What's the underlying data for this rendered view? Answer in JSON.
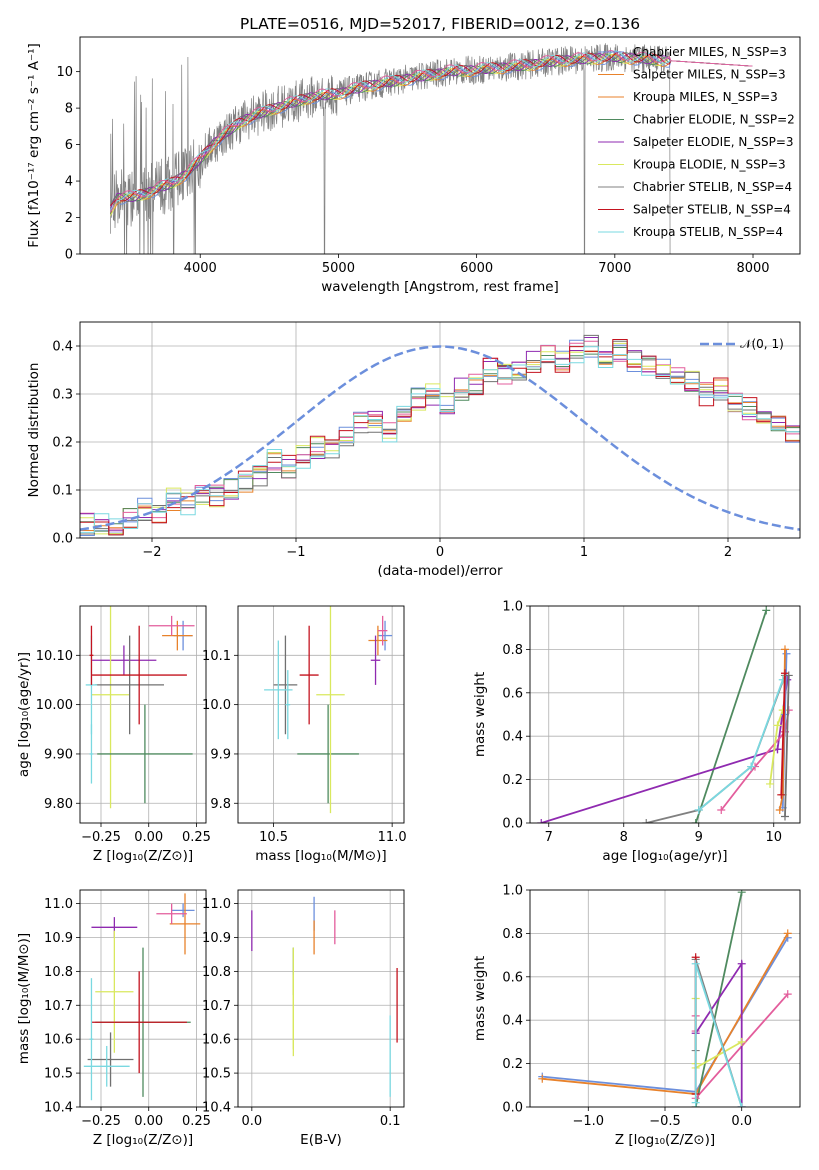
{
  "colors": [
    "#6c8fdc",
    "#e8822b",
    "#4f8a5f",
    "#e35d9c",
    "#8f2ab0",
    "#d9e85e",
    "#707070",
    "#c4131f",
    "#7ad8e0",
    "#808080"
  ],
  "chart_data": [
    {
      "type": "line",
      "title": "PLATE=0516, MJD=52017, FIBERID=0012, z=0.136",
      "xlabel": "wavelength [Angstrom, rest frame]",
      "ylabel": "Flux [fλ10⁻¹⁷ erg cm⁻² s⁻¹ A⁻¹]",
      "xlim": [
        3130,
        8340
      ],
      "ylim": [
        0,
        11.9
      ],
      "xticks": [
        4000,
        5000,
        6000,
        7000,
        8000
      ],
      "yticks": [
        0,
        2,
        4,
        6,
        8,
        10
      ],
      "grid": false,
      "legend_position": "top-right",
      "legend": [
        "Chabrier MILES, N_SSP=3",
        "Salpeter MILES, N_SSP=3",
        "Kroupa MILES, N_SSP=3",
        "Chabrier ELODIE, N_SSP=2",
        "Salpeter ELODIE, N_SSP=3",
        "Kroupa ELODIE, N_SSP=3",
        "Chabrier STELIB, N_SSP=4",
        "Salpeter STELIB, N_SSP=4",
        "Kroupa STELIB, N_SSP=4"
      ],
      "continuum": {
        "x": [
          3350,
          3400,
          3500,
          3600,
          3700,
          3800,
          3900,
          4000,
          4100,
          4300,
          4500,
          4800,
          5000,
          5200,
          5500,
          5800,
          6000,
          6300,
          6600,
          6800,
          7000,
          7200,
          7400
        ],
        "y": [
          2.4,
          3.1,
          3.1,
          3.3,
          3.6,
          3.9,
          4.4,
          5.2,
          6.1,
          7.3,
          7.9,
          8.6,
          8.8,
          9.2,
          9.6,
          10.0,
          10.1,
          10.3,
          10.6,
          10.7,
          10.8,
          10.7,
          10.6
        ]
      }
    },
    {
      "type": "bar",
      "xlabel": "(data-model)/error",
      "ylabel": "Normed distribution",
      "xlim": [
        -2.5,
        2.5
      ],
      "ylim": [
        0,
        0.45
      ],
      "xticks": [
        -2,
        -1,
        0,
        1,
        2
      ],
      "yticks": [
        0.0,
        0.1,
        0.2,
        0.3,
        0.4
      ],
      "grid": true,
      "legend_position": "top-right",
      "legend": [
        "𝒩(0, 1)"
      ],
      "bin_width": 0.1,
      "bin_start": -2.5,
      "base": [
        0.03,
        0.03,
        0.03,
        0.04,
        0.06,
        0.05,
        0.08,
        0.07,
        0.09,
        0.09,
        0.1,
        0.12,
        0.13,
        0.16,
        0.15,
        0.17,
        0.19,
        0.18,
        0.21,
        0.24,
        0.24,
        0.22,
        0.26,
        0.29,
        0.3,
        0.28,
        0.31,
        0.32,
        0.35,
        0.34,
        0.35,
        0.37,
        0.38,
        0.37,
        0.39,
        0.4,
        0.38,
        0.39,
        0.37,
        0.36,
        0.35,
        0.34,
        0.33,
        0.3,
        0.31,
        0.28,
        0.27,
        0.25,
        0.23,
        0.22,
        0.21,
        0.2,
        0.19,
        0.16,
        0.15,
        0.14,
        0.12,
        0.11,
        0.1,
        0.09,
        0.08,
        0.08,
        0.07,
        0.06,
        0.05,
        0.05,
        0.05,
        0.04,
        0.04,
        0.04,
        0.04,
        0.04,
        0.04,
        0.03,
        0.03,
        0.03,
        0.03,
        0.03,
        0.03,
        0.03
      ],
      "normal_curve": {
        "mean": 0,
        "sigma": 1
      }
    },
    {
      "type": "scatter",
      "xlabel": "Z [log₁₀(Z/Z⊙)]",
      "ylabel": "age  [log₁₀(age/yr)]",
      "xlim": [
        -0.36,
        0.3
      ],
      "ylim": [
        9.76,
        10.2
      ],
      "xticks": [
        -0.25,
        0.0,
        0.25
      ],
      "yticks": [
        9.8,
        9.9,
        10.0,
        10.1
      ],
      "grid": true,
      "points": [
        {
          "x": -0.13,
          "y": 10.09,
          "xerr": 0.17,
          "yerr": 0.03,
          "c": 4
        },
        {
          "x": -0.2,
          "y": 10.02,
          "xerr": 0.1,
          "yerr": 0.23,
          "c": 5
        },
        {
          "x": -0.1,
          "y": 10.04,
          "xerr": 0.18,
          "yerr": 0.1,
          "c": 6
        },
        {
          "x": -0.05,
          "y": 10.06,
          "xerr": 0.25,
          "yerr": 0.1,
          "c": 7
        },
        {
          "x": -0.3,
          "y": 10.04,
          "xerr": 0.03,
          "yerr": 0.1,
          "c": 8
        },
        {
          "x": -0.3,
          "y": 9.9,
          "xerr": 0.01,
          "yerr": 0.06,
          "c": 8
        },
        {
          "x": -0.02,
          "y": 9.9,
          "xerr": 0.25,
          "yerr": 0.1,
          "c": 2
        },
        {
          "x": 0.18,
          "y": 10.14,
          "xerr": 0.05,
          "yerr": 0.03,
          "c": 0
        },
        {
          "x": 0.15,
          "y": 10.14,
          "xerr": 0.08,
          "yerr": 0.03,
          "c": 1
        },
        {
          "x": 0.12,
          "y": 10.16,
          "xerr": 0.12,
          "yerr": 0.02,
          "c": 3
        },
        {
          "x": -0.3,
          "y": 10.1,
          "xerr": 0.01,
          "yerr": 0.06,
          "c": 7
        }
      ]
    },
    {
      "type": "scatter",
      "xlabel": "mass [log₁₀(M/M⊙)]",
      "ylabel": "",
      "xlim": [
        10.35,
        11.05
      ],
      "ylim": [
        9.76,
        10.2
      ],
      "xticks": [
        10.5,
        11.0
      ],
      "yticks": [
        9.8,
        9.9,
        10.0,
        10.1
      ],
      "grid": true,
      "points": [
        {
          "x": 10.97,
          "y": 10.14,
          "xerr": 0.03,
          "yerr": 0.03,
          "c": 0
        },
        {
          "x": 10.94,
          "y": 10.13,
          "xerr": 0.04,
          "yerr": 0.03,
          "c": 1
        },
        {
          "x": 10.73,
          "y": 9.9,
          "xerr": 0.13,
          "yerr": 0.1,
          "c": 2
        },
        {
          "x": 10.96,
          "y": 10.15,
          "xerr": 0.02,
          "yerr": 0.03,
          "c": 3
        },
        {
          "x": 10.93,
          "y": 10.09,
          "xerr": 0.02,
          "yerr": 0.05,
          "c": 4
        },
        {
          "x": 10.74,
          "y": 10.02,
          "xerr": 0.06,
          "yerr": 0.24,
          "c": 5
        },
        {
          "x": 10.55,
          "y": 10.04,
          "xerr": 0.05,
          "yerr": 0.1,
          "c": 6
        },
        {
          "x": 10.65,
          "y": 10.06,
          "xerr": 0.04,
          "yerr": 0.1,
          "c": 7
        },
        {
          "x": 10.52,
          "y": 10.03,
          "xerr": 0.06,
          "yerr": 0.1,
          "c": 8
        },
        {
          "x": 10.56,
          "y": 10.0,
          "xerr": 0.01,
          "yerr": 0.07,
          "c": 8
        }
      ]
    },
    {
      "type": "line",
      "xlabel": "age  [log₁₀(age/yr)]",
      "ylabel": "mass weight",
      "xlim": [
        6.75,
        10.35
      ],
      "ylim": [
        0,
        1.0
      ],
      "xticks": [
        7,
        8,
        9,
        10
      ],
      "yticks": [
        0.0,
        0.2,
        0.4,
        0.6,
        0.8,
        1.0
      ],
      "grid": true,
      "series": [
        {
          "c": 2,
          "x": [
            8.96,
            9.9
          ],
          "y": [
            0.0,
            0.98
          ]
        },
        {
          "c": 4,
          "x": [
            6.9,
            10.05
          ],
          "y": [
            0.0,
            0.34
          ]
        },
        {
          "c": 4,
          "x": [
            10.05,
            10.18
          ],
          "y": [
            0.34,
            0.66
          ]
        },
        {
          "c": 3,
          "x": [
            9.3,
            9.75,
            10.15
          ],
          "y": [
            0.06,
            0.26,
            0.42
          ]
        },
        {
          "c": 3,
          "x": [
            10.15,
            10.2
          ],
          "y": [
            0.42,
            0.52
          ]
        },
        {
          "c": 5,
          "x": [
            9.95,
            10.05,
            10.12
          ],
          "y": [
            0.18,
            0.45,
            0.52
          ]
        },
        {
          "c": 9,
          "x": [
            8.3,
            9.0,
            9.7,
            10.15
          ],
          "y": [
            0.0,
            0.06,
            0.26,
            0.68
          ]
        },
        {
          "c": 8,
          "x": [
            9.0,
            9.7,
            10.12
          ],
          "y": [
            0.06,
            0.26,
            0.66
          ]
        },
        {
          "c": 0,
          "x": [
            10.12,
            10.15,
            10.17
          ],
          "y": [
            0.07,
            0.5,
            0.78
          ]
        },
        {
          "c": 1,
          "x": [
            10.08,
            10.12,
            10.15
          ],
          "y": [
            0.06,
            0.13,
            0.8
          ]
        },
        {
          "c": 7,
          "x": [
            10.1,
            10.15
          ],
          "y": [
            0.13,
            0.69
          ]
        },
        {
          "c": 6,
          "x": [
            10.15,
            10.2
          ],
          "y": [
            0.03,
            0.68
          ]
        }
      ]
    },
    {
      "type": "scatter",
      "xlabel": "Z [log₁₀(Z/Z⊙)]",
      "ylabel": "mass [log₁₀(M/M⊙)]",
      "xlim": [
        -0.36,
        0.3
      ],
      "ylim": [
        10.4,
        11.04
      ],
      "xticks": [
        -0.25,
        0.0,
        0.25
      ],
      "yticks": [
        10.4,
        10.5,
        10.6,
        10.7,
        10.8,
        10.9,
        11.0
      ],
      "grid": true,
      "points": [
        {
          "x": 0.18,
          "y": 10.98,
          "xerr": 0.06,
          "yerr": 0.02,
          "c": 0
        },
        {
          "x": 0.19,
          "y": 10.94,
          "xerr": 0.08,
          "yerr": 0.09,
          "c": 1
        },
        {
          "x": -0.03,
          "y": 10.65,
          "xerr": 0.25,
          "yerr": 0.22,
          "c": 2
        },
        {
          "x": 0.12,
          "y": 10.97,
          "xerr": 0.08,
          "yerr": 0.03,
          "c": 3
        },
        {
          "x": -0.18,
          "y": 10.93,
          "xerr": 0.12,
          "yerr": 0.03,
          "c": 4
        },
        {
          "x": -0.18,
          "y": 10.74,
          "xerr": 0.1,
          "yerr": 0.18,
          "c": 5
        },
        {
          "x": -0.2,
          "y": 10.54,
          "xerr": 0.12,
          "yerr": 0.08,
          "c": 6
        },
        {
          "x": -0.05,
          "y": 10.65,
          "xerr": 0.25,
          "yerr": 0.15,
          "c": 7
        },
        {
          "x": -0.22,
          "y": 10.52,
          "xerr": 0.12,
          "yerr": 0.06,
          "c": 8
        },
        {
          "x": -0.3,
          "y": 10.6,
          "xerr": 0.01,
          "yerr": 0.18,
          "c": 8
        }
      ]
    },
    {
      "type": "scatter",
      "xlabel": "E(B-V)",
      "ylabel": "",
      "xlim": [
        -0.01,
        0.11
      ],
      "ylim": [
        10.4,
        11.04
      ],
      "xticks": [
        0.0,
        0.1
      ],
      "yticks": [
        10.4,
        10.5,
        10.6,
        10.7,
        10.8,
        10.9,
        11.0
      ],
      "grid": true,
      "points": [
        {
          "x": 0.045,
          "y": 10.97,
          "xerr": 0.0,
          "yerr": 0.05,
          "c": 0
        },
        {
          "x": 0.045,
          "y": 10.9,
          "xerr": 0.0,
          "yerr": 0.05,
          "c": 1
        },
        {
          "x": 0.03,
          "y": 10.8,
          "xerr": 0.0,
          "yerr": 0.07,
          "c": 2
        },
        {
          "x": 0.06,
          "y": 10.93,
          "xerr": 0.0,
          "yerr": 0.05,
          "c": 3
        },
        {
          "x": 0.0,
          "y": 10.92,
          "xerr": 0.0,
          "yerr": 0.06,
          "c": 4
        },
        {
          "x": 0.03,
          "y": 10.67,
          "xerr": 0.0,
          "yerr": 0.12,
          "c": 5
        },
        {
          "x": 0.03,
          "y": 10.72,
          "xerr": 0.0,
          "yerr": 0.15,
          "c": 5
        },
        {
          "x": 0.1,
          "y": 10.55,
          "xerr": 0.0,
          "yerr": 0.12,
          "c": 8
        },
        {
          "x": 0.105,
          "y": 10.7,
          "xerr": 0.0,
          "yerr": 0.11,
          "c": 7
        }
      ]
    },
    {
      "type": "line",
      "xlabel": "Z [log₁₀(Z/Z⊙)]",
      "ylabel": "mass weight",
      "xlim": [
        -1.38,
        0.38
      ],
      "ylim": [
        0,
        1.0
      ],
      "xticks": [
        -1.0,
        -0.5,
        0.0
      ],
      "yticks": [
        0.0,
        0.2,
        0.4,
        0.6,
        0.8,
        1.0
      ],
      "grid": true,
      "series": [
        {
          "c": 0,
          "x": [
            -1.3,
            -0.3,
            0.3
          ],
          "y": [
            0.14,
            0.07,
            0.78
          ]
        },
        {
          "c": 1,
          "x": [
            -1.3,
            -0.3,
            0.3
          ],
          "y": [
            0.13,
            0.06,
            0.8
          ]
        },
        {
          "c": 2,
          "x": [
            -0.3,
            0.0
          ],
          "y": [
            0.0,
            0.99
          ]
        },
        {
          "c": 3,
          "x": [
            -0.3,
            0.3
          ],
          "y": [
            0.04,
            0.52
          ]
        },
        {
          "c": 3,
          "x": [
            -0.3,
            -0.3
          ],
          "y": [
            0.35,
            0.42
          ]
        },
        {
          "c": 4,
          "x": [
            -0.3,
            0.0,
            0.0
          ],
          "y": [
            0.34,
            0.66,
            0.0
          ]
        },
        {
          "c": 5,
          "x": [
            -0.3,
            0.0
          ],
          "y": [
            0.18,
            0.3
          ]
        },
        {
          "c": 5,
          "x": [
            -0.3,
            -0.3
          ],
          "y": [
            0.2,
            0.5
          ]
        },
        {
          "c": 9,
          "x": [
            -0.3,
            -0.3,
            0.0
          ],
          "y": [
            0.26,
            0.68,
            0.0
          ]
        },
        {
          "c": 7,
          "x": [
            -0.3,
            -0.3
          ],
          "y": [
            0.06,
            0.69
          ]
        },
        {
          "c": 8,
          "x": [
            -0.3,
            -0.3,
            0.0
          ],
          "y": [
            0.02,
            0.66,
            0.0
          ]
        }
      ]
    }
  ]
}
